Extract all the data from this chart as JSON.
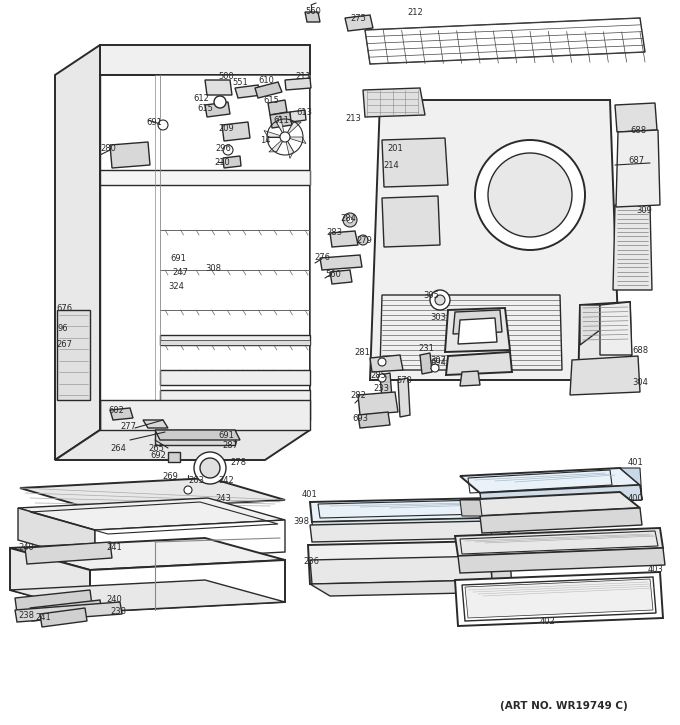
{
  "art_no": "(ART NO. WR19749 C)",
  "bg_color": "#ffffff",
  "line_color": "#2a2a2a",
  "fig_width": 6.8,
  "fig_height": 7.25,
  "dpi": 100
}
